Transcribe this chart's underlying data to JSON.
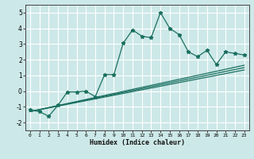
{
  "title": "",
  "xlabel": "Humidex (Indice chaleur)",
  "bg_color": "#cde8e8",
  "grid_color": "#ffffff",
  "line_color": "#1a7060",
  "xlim": [
    -0.5,
    23.5
  ],
  "ylim": [
    -2.5,
    5.5
  ],
  "xticks": [
    0,
    1,
    2,
    3,
    4,
    5,
    6,
    7,
    8,
    9,
    10,
    11,
    12,
    13,
    14,
    15,
    16,
    17,
    18,
    19,
    20,
    21,
    22,
    23
  ],
  "yticks": [
    -2,
    -1,
    0,
    1,
    2,
    3,
    4,
    5
  ],
  "line1_x": [
    0,
    1,
    2,
    3,
    4,
    5,
    6,
    7,
    8,
    9,
    10,
    11,
    12,
    13,
    14,
    15,
    16,
    17,
    18,
    19,
    20,
    21,
    22,
    23
  ],
  "line1_y": [
    -1.2,
    -1.3,
    -1.6,
    -0.9,
    -0.05,
    -0.05,
    0.0,
    -0.35,
    1.05,
    1.05,
    3.05,
    3.9,
    3.5,
    3.4,
    5.0,
    4.0,
    3.6,
    2.5,
    2.2,
    2.6,
    1.7,
    2.5,
    2.4,
    2.3
  ],
  "line2_x": [
    0,
    23
  ],
  "line2_y": [
    -1.3,
    1.65
  ],
  "line3_x": [
    0,
    23
  ],
  "line3_y": [
    -1.3,
    1.5
  ],
  "line4_x": [
    0,
    23
  ],
  "line4_y": [
    -1.3,
    1.35
  ]
}
